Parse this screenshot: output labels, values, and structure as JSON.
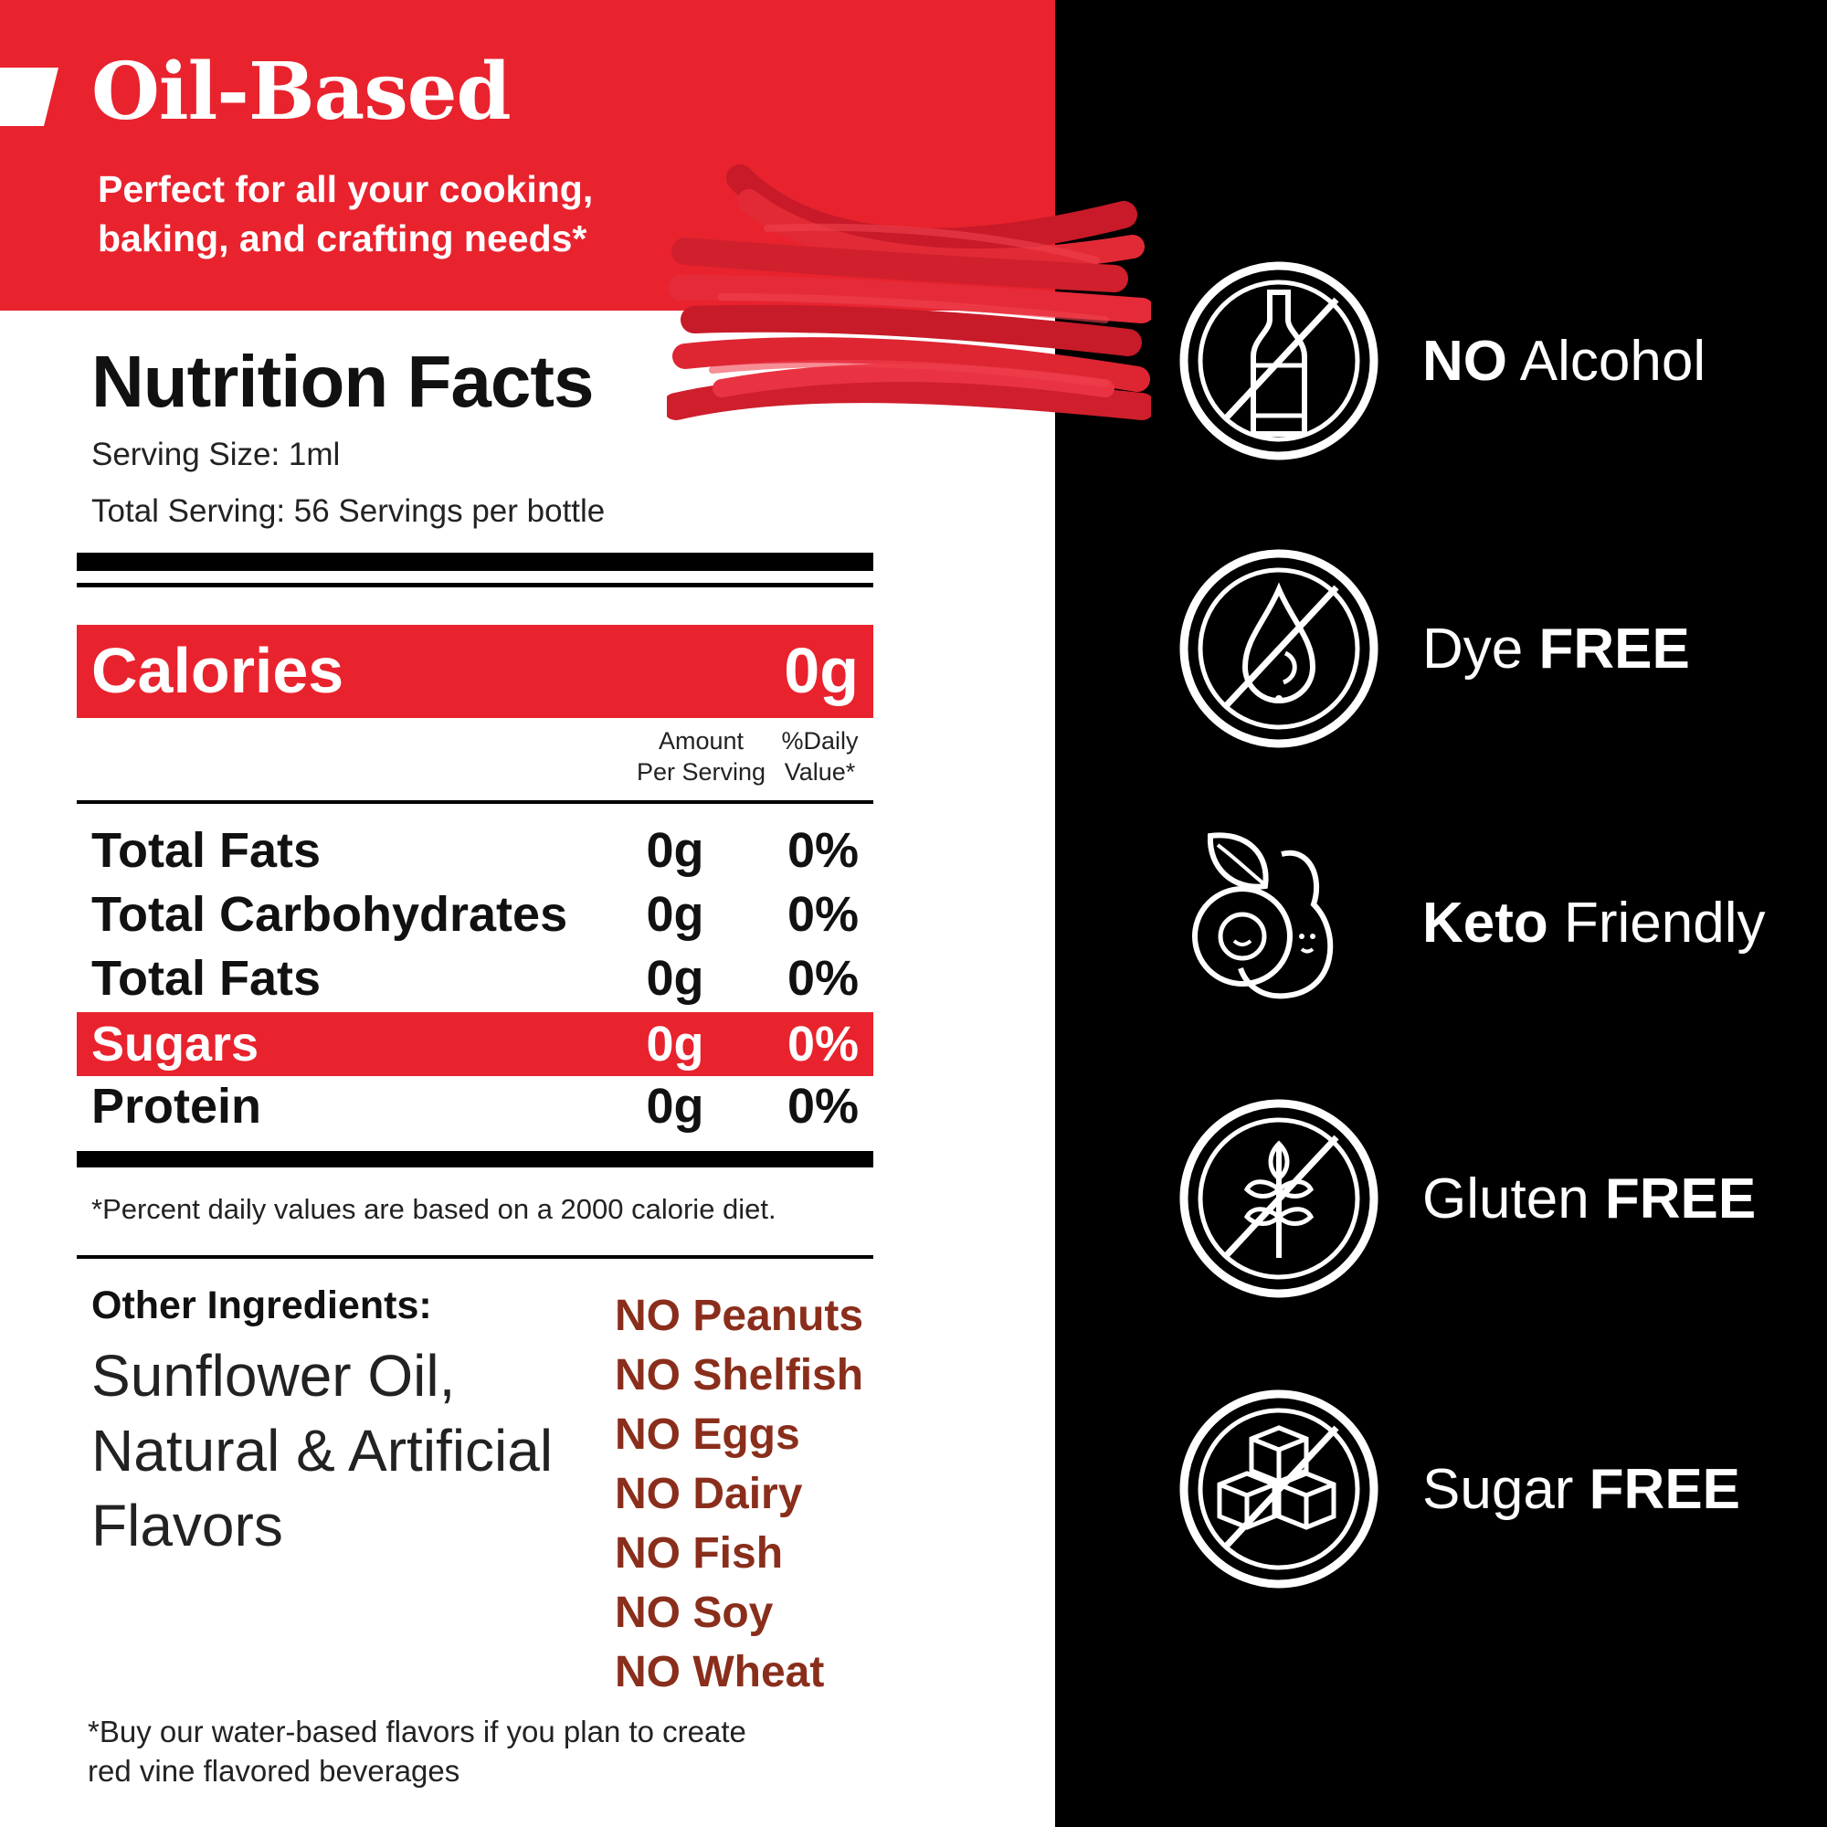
{
  "header": {
    "title": "Oil-Based",
    "subtitle_line1": "Perfect for all your cooking,",
    "subtitle_line2": "baking, and crafting needs*"
  },
  "nutrition": {
    "title": "Nutrition Facts",
    "serving_size": "Serving Size: 1ml",
    "total_serving": "Total Serving: 56 Servings per bottle",
    "calories_label": "Calories",
    "calories_value": "0g",
    "col_amount_line1": "Amount",
    "col_amount_line2": "Per Serving",
    "col_dv_line1": "%Daily",
    "col_dv_line2": "Value*",
    "rows": [
      {
        "label": "Total Fats",
        "amount": "0g",
        "dv": "0%"
      },
      {
        "label": "Total Carbohydrates",
        "amount": "0g",
        "dv": "0%"
      },
      {
        "label": "Total Fats",
        "amount": "0g",
        "dv": "0%"
      },
      {
        "label": "Sugars",
        "amount": "0g",
        "dv": "0%"
      },
      {
        "label": "Protein",
        "amount": "0g",
        "dv": "0%"
      }
    ],
    "footnote": "*Percent daily values are based on a 2000 calorie diet."
  },
  "ingredients": {
    "heading": "Other Ingredients:",
    "line1": "Sunflower Oil,",
    "line2": "Natural & Artificial",
    "line3": "Flavors"
  },
  "allergens": [
    "NO Peanuts",
    "NO Shelfish",
    "NO Eggs",
    "NO Dairy",
    "NO Fish",
    "NO Soy",
    "NO Wheat"
  ],
  "note": {
    "line1": "*Buy our water-based flavors if you plan to create",
    "line2": "red vine flavored beverages"
  },
  "features": [
    {
      "bold": "NO",
      "light": " Alcohol",
      "icon": "no-alcohol-icon"
    },
    {
      "light": "Dye ",
      "bold": "FREE",
      "icon": "dye-free-icon"
    },
    {
      "bold": "Keto",
      "light": " Friendly",
      "icon": "avocado-icon"
    },
    {
      "light": "Gluten ",
      "bold": "FREE",
      "icon": "gluten-free-icon"
    },
    {
      "light": "Sugar ",
      "bold": "FREE",
      "icon": "sugar-free-icon"
    }
  ],
  "colors": {
    "brand_red": "#e8232e",
    "panel_black": "#000000",
    "allergen_brown": "#8a2e1c"
  }
}
